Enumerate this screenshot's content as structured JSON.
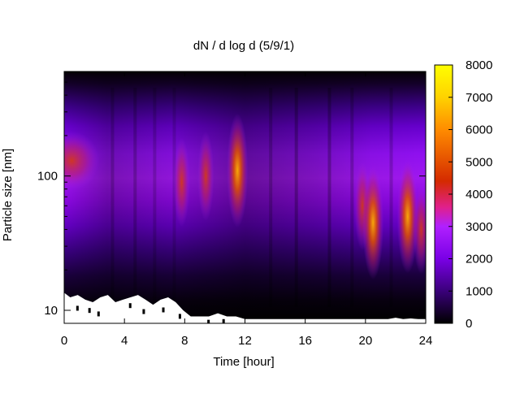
{
  "chart_data": {
    "type": "heatmap",
    "title": "dN / d log d (5/9/1)",
    "xlabel": "Time [hour]",
    "ylabel": "Particle size [nm]",
    "x_range": [
      0,
      24
    ],
    "x_ticks": [
      0,
      4,
      8,
      12,
      16,
      20,
      24
    ],
    "y_scale": "log",
    "y_range": [
      8,
      600
    ],
    "y_ticks": [
      10,
      100
    ],
    "colorbar": {
      "range": [
        0,
        8000
      ],
      "ticks": [
        0,
        1000,
        2000,
        3000,
        4000,
        5000,
        6000,
        7000,
        8000
      ],
      "colormap": [
        "#000000",
        "#3a007a",
        "#7a00e6",
        "#b020ff",
        "#e0208a",
        "#d42a00",
        "#ff8c00",
        "#ffd200",
        "#ffff00"
      ]
    },
    "hotspots": [
      {
        "time_hour": 0.5,
        "diameter_nm": 130,
        "dNdlogd": 4500
      },
      {
        "time_hour": 7.8,
        "diameter_nm": 90,
        "dNdlogd": 4800
      },
      {
        "time_hour": 9.4,
        "diameter_nm": 100,
        "dNdlogd": 4300
      },
      {
        "time_hour": 11.5,
        "diameter_nm": 110,
        "dNdlogd": 6500
      },
      {
        "time_hour": 19.8,
        "diameter_nm": 60,
        "dNdlogd": 4200
      },
      {
        "time_hour": 20.5,
        "diameter_nm": 45,
        "dNdlogd": 5200
      },
      {
        "time_hour": 22.8,
        "diameter_nm": 50,
        "dNdlogd": 5200
      },
      {
        "time_hour": 23.7,
        "diameter_nm": 40,
        "dNdlogd": 4800
      }
    ],
    "grid": false
  }
}
